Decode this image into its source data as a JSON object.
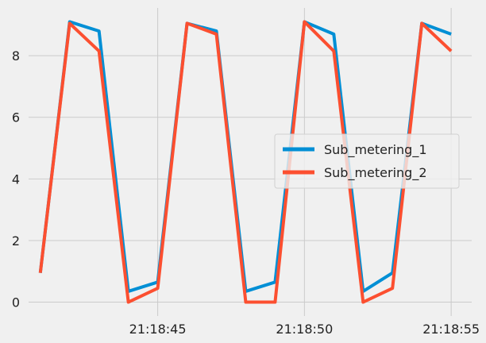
{
  "chart_data": {
    "type": "line",
    "title": "",
    "xlabel": "",
    "ylabel": "",
    "x": [
      "21:18:41",
      "21:18:42",
      "21:18:43",
      "21:18:44",
      "21:18:45",
      "21:18:46",
      "21:18:47",
      "21:18:48",
      "21:18:49",
      "21:18:50",
      "21:18:51",
      "21:18:52",
      "21:18:53",
      "21:18:54",
      "21:18:55"
    ],
    "xlim": [
      "21:18:40.6",
      "21:18:55.7"
    ],
    "ylim": [
      -0.45,
      9.55
    ],
    "x_ticks": [
      "21:18:45",
      "21:18:50",
      "21:18:55"
    ],
    "y_ticks": [
      0,
      2,
      4,
      6,
      8
    ],
    "grid": true,
    "legend_position": "center-right",
    "series": [
      {
        "name": "Sub_metering_1",
        "color": "#008fd5",
        "values": [
          0.95,
          9.1,
          8.8,
          0.35,
          0.65,
          9.05,
          8.8,
          0.35,
          0.65,
          9.1,
          8.7,
          0.35,
          0.95,
          9.05,
          8.7
        ]
      },
      {
        "name": "Sub_metering_2",
        "color": "#fc4f30",
        "values": [
          0.95,
          9.05,
          8.15,
          0.0,
          0.45,
          9.05,
          8.7,
          0.0,
          0.0,
          9.1,
          8.15,
          0.0,
          0.45,
          9.05,
          8.15
        ]
      }
    ]
  }
}
